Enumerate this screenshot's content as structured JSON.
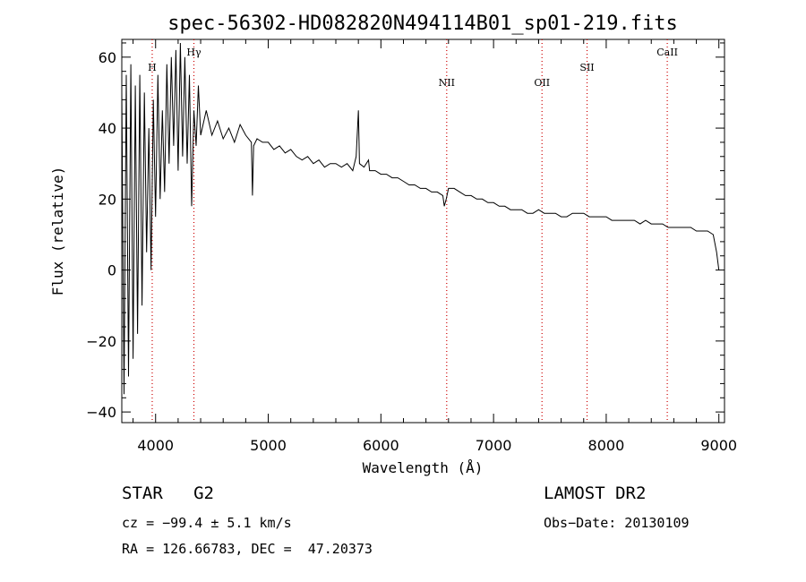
{
  "chart_data": {
    "type": "line",
    "title": "spec-56302-HD082820N494114B01_sp01-219.fits",
    "xlabel": "Wavelength (Å)",
    "ylabel": "Flux (relative)",
    "xlim": [
      3700,
      9050
    ],
    "ylim": [
      -43,
      65
    ],
    "xticks": [
      4000,
      5000,
      6000,
      7000,
      8000,
      9000
    ],
    "yticks": [
      -40,
      -20,
      0,
      20,
      40,
      60
    ],
    "ytick_labels": [
      "−40",
      "−20",
      "0",
      "20",
      "40",
      "60"
    ],
    "grid": false,
    "line_color": "#000000",
    "marker_color": "#cc0000",
    "line_markers": [
      {
        "label": "H",
        "x": 3970
      },
      {
        "label": "Hγ",
        "x": 4340
      },
      {
        "label": "NII",
        "x": 6584
      },
      {
        "label": "OII",
        "x": 7430
      },
      {
        "label": "SII",
        "x": 7830
      },
      {
        "label": "CaII",
        "x": 8542
      }
    ],
    "series": [
      {
        "x": [
          3700,
          3720,
          3740,
          3760,
          3780,
          3800,
          3820,
          3840,
          3860,
          3880,
          3900,
          3920,
          3940,
          3960,
          3980,
          4000,
          4020,
          4040,
          4060,
          4080,
          4100,
          4120,
          4140,
          4160,
          4180,
          4200,
          4220,
          4240,
          4260,
          4280,
          4300,
          4320,
          4340,
          4360,
          4380,
          4400,
          4450,
          4500,
          4550,
          4600,
          4650,
          4700,
          4750,
          4800,
          4850,
          4860,
          4870,
          4900,
          4950,
          5000,
          5050,
          5100,
          5150,
          5200,
          5250,
          5300,
          5350,
          5400,
          5450,
          5500,
          5550,
          5600,
          5650,
          5700,
          5750,
          5780,
          5800,
          5810,
          5850,
          5890,
          5900,
          5950,
          6000,
          6050,
          6100,
          6150,
          6200,
          6250,
          6300,
          6350,
          6400,
          6450,
          6500,
          6550,
          6563,
          6580,
          6600,
          6650,
          6700,
          6750,
          6800,
          6850,
          6900,
          6950,
          7000,
          7050,
          7100,
          7150,
          7200,
          7250,
          7300,
          7350,
          7400,
          7450,
          7500,
          7550,
          7600,
          7650,
          7700,
          7750,
          7800,
          7850,
          7900,
          7950,
          8000,
          8050,
          8100,
          8150,
          8200,
          8250,
          8300,
          8350,
          8400,
          8450,
          8500,
          8550,
          8600,
          8650,
          8700,
          8750,
          8800,
          8850,
          8900,
          8950,
          8980,
          9000
        ],
        "y": [
          50,
          -35,
          55,
          -30,
          58,
          -25,
          52,
          -18,
          55,
          -10,
          50,
          5,
          40,
          0,
          48,
          15,
          55,
          20,
          45,
          22,
          58,
          30,
          60,
          35,
          62,
          28,
          64,
          32,
          60,
          30,
          55,
          18,
          45,
          35,
          52,
          38,
          45,
          38,
          42,
          37,
          40,
          36,
          41,
          38,
          36,
          21,
          35,
          37,
          36,
          36,
          34,
          35,
          33,
          34,
          32,
          31,
          32,
          30,
          31,
          29,
          30,
          30,
          29,
          30,
          28,
          32,
          45,
          30,
          29,
          31,
          28,
          28,
          27,
          27,
          26,
          26,
          25,
          24,
          24,
          23,
          23,
          22,
          22,
          21,
          18,
          20,
          23,
          23,
          22,
          21,
          21,
          20,
          20,
          19,
          19,
          18,
          18,
          17,
          17,
          17,
          16,
          16,
          17,
          16,
          16,
          16,
          15,
          15,
          16,
          16,
          16,
          15,
          15,
          15,
          15,
          14,
          14,
          14,
          14,
          14,
          13,
          14,
          13,
          13,
          13,
          12,
          12,
          12,
          12,
          12,
          11,
          11,
          11,
          10,
          5,
          0
        ]
      }
    ]
  },
  "info": {
    "class_line": "STAR   G2",
    "survey": "LAMOST DR2",
    "cz_line": "cz = −99.4 ± 5.1 km/s",
    "obs_date": "Obs−Date: 20130109",
    "radec_line": "RA = 126.66783, DEC =  47.20373"
  }
}
